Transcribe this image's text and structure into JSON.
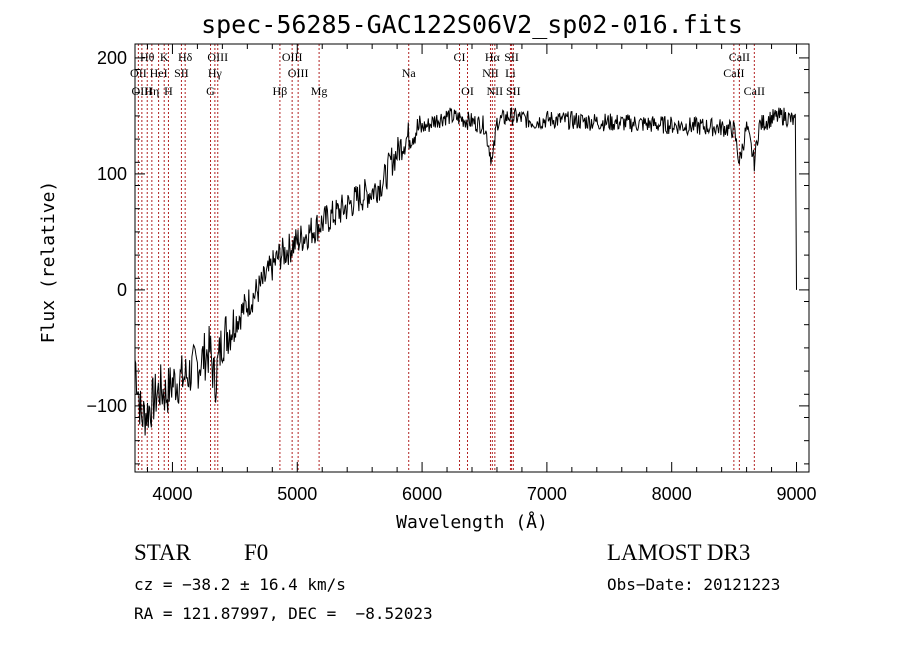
{
  "chart_data": {
    "type": "line",
    "title": "spec-56285-GAC122S06V2_sp02-016.fits",
    "xlabel": "Wavelength (Å)",
    "ylabel": "Flux (relative)",
    "xlim": [
      3700,
      9100
    ],
    "ylim": [
      -157,
      212
    ],
    "xticks": [
      4000,
      5000,
      6000,
      7000,
      8000,
      9000
    ],
    "yticks": [
      -100,
      0,
      100,
      200
    ],
    "series": [
      {
        "name": "flux",
        "color": "#000000",
        "x": [
          3700,
          3750,
          3800,
          3850,
          3900,
          3950,
          4000,
          4050,
          4100,
          4150,
          4200,
          4250,
          4300,
          4340,
          4400,
          4500,
          4600,
          4700,
          4800,
          4860,
          4900,
          5000,
          5100,
          5200,
          5300,
          5400,
          5500,
          5600,
          5700,
          5750,
          5800,
          5850,
          5890,
          5950,
          6000,
          6050,
          6100,
          6200,
          6300,
          6400,
          6500,
          6563,
          6600,
          6700,
          6800,
          6900,
          7000,
          7200,
          7400,
          7600,
          7800,
          8000,
          8200,
          8400,
          8500,
          8542,
          8600,
          8662,
          8700,
          8800,
          8900,
          8990,
          9000
        ],
        "y": [
          -60,
          -110,
          -105,
          -95,
          -85,
          -90,
          -80,
          -78,
          -75,
          -70,
          -65,
          -58,
          -52,
          -80,
          -42,
          -28,
          -12,
          2,
          20,
          30,
          32,
          42,
          50,
          58,
          65,
          72,
          80,
          85,
          95,
          110,
          118,
          128,
          132,
          138,
          140,
          142,
          146,
          150,
          148,
          145,
          142,
          110,
          145,
          150,
          148,
          145,
          147,
          146,
          145,
          144,
          143,
          142,
          141,
          140,
          138,
          110,
          140,
          110,
          142,
          148,
          150,
          145,
          0
        ]
      }
    ],
    "spectral_lines": [
      {
        "label": "Hθ",
        "wavelength": 3798,
        "row": 1
      },
      {
        "label": "K",
        "wavelength": 3934,
        "row": 1
      },
      {
        "label": "Hδ",
        "wavelength": 4102,
        "row": 1
      },
      {
        "label": "OIII",
        "wavelength": 4363,
        "row": 1
      },
      {
        "label": "OIII",
        "wavelength": 4959,
        "row": 1
      },
      {
        "label": "CI",
        "wavelength": 6300,
        "row": 1
      },
      {
        "label": "Hα",
        "wavelength": 6563,
        "row": 1
      },
      {
        "label": "SII",
        "wavelength": 6717,
        "row": 1
      },
      {
        "label": "CaII",
        "wavelength": 8542,
        "row": 1
      },
      {
        "label": "OII",
        "wavelength": 3727,
        "row": 2
      },
      {
        "label": "HeI",
        "wavelength": 3889,
        "row": 2
      },
      {
        "label": "SII",
        "wavelength": 4072,
        "row": 2
      },
      {
        "label": "Hγ",
        "wavelength": 4340,
        "row": 2
      },
      {
        "label": "OIII",
        "wavelength": 5007,
        "row": 2
      },
      {
        "label": "NII",
        "wavelength": 6548,
        "row": 2
      },
      {
        "label": "Li",
        "wavelength": 6708,
        "row": 2
      },
      {
        "label": "CaII",
        "wavelength": 8498,
        "row": 2
      },
      {
        "label": "OIII",
        "wavelength": 3755,
        "row": 3
      },
      {
        "label": "Hη",
        "wavelength": 3835,
        "row": 3
      },
      {
        "label": "H",
        "wavelength": 3968,
        "row": 3
      },
      {
        "label": "G",
        "wavelength": 4305,
        "row": 3
      },
      {
        "label": "Hβ",
        "wavelength": 4861,
        "row": 3
      },
      {
        "label": "Mg",
        "wavelength": 5175,
        "row": 3
      },
      {
        "label": "Na",
        "wavelength": 5893,
        "row": 2
      },
      {
        "label": "OI",
        "wavelength": 6364,
        "row": 3
      },
      {
        "label": "NII",
        "wavelength": 6583,
        "row": 3
      },
      {
        "label": "SII",
        "wavelength": 6731,
        "row": 3
      },
      {
        "label": "CaII",
        "wavelength": 8662,
        "row": 3
      }
    ],
    "line_color": "#b22222"
  },
  "info": {
    "object_class": "STAR",
    "subclass": "F0",
    "cz": "cz = −38.2 ± 16.4 km/s",
    "coords": "RA = 121.87997, DEC =  −8.52023",
    "survey": "LAMOST DR3",
    "obs_date": "Obs−Date: 20121223"
  }
}
